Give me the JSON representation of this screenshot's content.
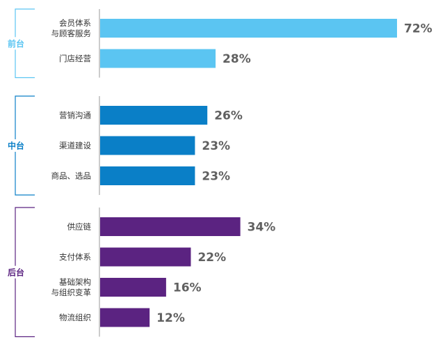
{
  "chart_data": {
    "type": "bar",
    "orientation": "horizontal",
    "xlim": [
      0,
      72
    ],
    "value_suffix": "%",
    "groups": [
      {
        "name": "前台",
        "color": "#5BC5F2",
        "items": [
          {
            "label": [
              "会员体系",
              "与顾客服务"
            ],
            "value": 72
          },
          {
            "label": [
              "门店经营"
            ],
            "value": 28
          }
        ]
      },
      {
        "name": "中台",
        "color": "#0A7FC7",
        "items": [
          {
            "label": [
              "营销沟通"
            ],
            "value": 26
          },
          {
            "label": [
              "渠道建设"
            ],
            "value": 23
          },
          {
            "label": [
              "商品、选品"
            ],
            "value": 23
          }
        ]
      },
      {
        "name": "后台",
        "color": "#5B2381",
        "items": [
          {
            "label": [
              "供应链"
            ],
            "value": 34
          },
          {
            "label": [
              "支付体系"
            ],
            "value": 22
          },
          {
            "label": [
              "基础架构",
              "与组织变革"
            ],
            "value": 16
          },
          {
            "label": [
              "物流组织"
            ],
            "value": 12
          }
        ]
      }
    ],
    "grid": false,
    "legend": "none"
  }
}
